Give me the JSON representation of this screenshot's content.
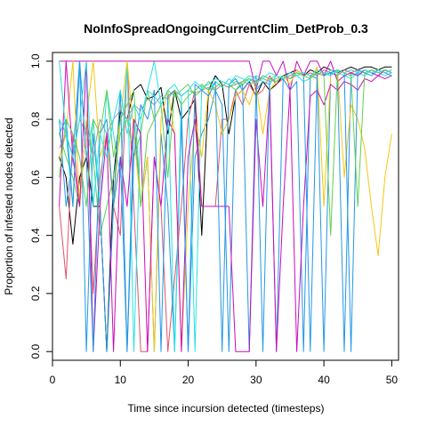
{
  "chart_data": {
    "type": "line",
    "title": "NoInfoSpreadOngoingCurrentClim_DetProb_0.3",
    "xlabel": "Time since incursion detected (timesteps)",
    "ylabel": "Proportion of infested nodes detected",
    "xlim": [
      0,
      51
    ],
    "ylim": [
      -0.03,
      1.03
    ],
    "xticks": [
      0,
      10,
      20,
      30,
      40,
      50
    ],
    "yticks": [
      0.0,
      0.2,
      0.4,
      0.6,
      0.8,
      1.0
    ],
    "xtick_labels": [
      "0",
      "10",
      "20",
      "30",
      "40",
      "50"
    ],
    "ytick_labels": [
      "0.0",
      "0.2",
      "0.4",
      "0.6",
      "0.8",
      "1.0"
    ],
    "grid": false,
    "legend": "none",
    "x": [
      1,
      2,
      3,
      4,
      5,
      6,
      7,
      8,
      9,
      10,
      11,
      12,
      13,
      14,
      15,
      16,
      17,
      18,
      19,
      20,
      21,
      22,
      23,
      24,
      25,
      26,
      27,
      28,
      29,
      30,
      31,
      32,
      33,
      34,
      35,
      36,
      37,
      38,
      39,
      40,
      41,
      42,
      43,
      44,
      45,
      46,
      47,
      48,
      49,
      50
    ],
    "series": [
      {
        "color": "#000000",
        "values": [
          0.67,
          0.6,
          0.37,
          0.6,
          0.67,
          0.5,
          0.5,
          0.0,
          0.6,
          0.83,
          0.8,
          0.9,
          0.92,
          0.87,
          0.88,
          0.91,
          0.75,
          0.9,
          0.8,
          0.83,
          0.87,
          0.4,
          0.9,
          0.95,
          0.92,
          0.75,
          0.88,
          0.9,
          0.93,
          0.88,
          0.93,
          0.9,
          0.92,
          0.95,
          0.96,
          0.97,
          0.95,
          0.97,
          0.96,
          0.98,
          0.97,
          0.96,
          0.97,
          0.98,
          0.97,
          0.98,
          0.98,
          0.97,
          0.98,
          0.98
        ]
      },
      {
        "color": "#DF536B",
        "values": [
          0.5,
          0.25,
          0.75,
          0.5,
          0.8,
          0.2,
          0.6,
          0.75,
          0.5,
          0.4,
          1.0,
          0.5,
          0.0,
          0.0,
          0.67,
          0.5,
          0.0,
          0.25,
          0.5,
          0.8,
          0.9,
          0.5,
          0.5,
          0.5,
          0.8,
          0.8,
          0.9,
          0.85,
          0.92,
          0.88,
          0.9,
          0.95,
          0.92,
          0.94,
          0.95,
          0.96,
          0.95,
          0.96,
          0.95,
          0.97,
          0.96,
          0.95,
          0.97,
          0.96,
          0.97,
          0.96,
          0.97,
          0.96,
          0.97,
          0.96
        ]
      },
      {
        "color": "#61D04F",
        "values": [
          0.75,
          0.67,
          0.6,
          0.5,
          0.8,
          0.67,
          0.4,
          0.5,
          0.6,
          0.75,
          0.8,
          0.67,
          0.75,
          0.9,
          0.8,
          0.85,
          0.9,
          0.88,
          0.9,
          0.92,
          0.88,
          0.9,
          0.93,
          0.9,
          0.92,
          0.91,
          0.93,
          0.92,
          0.94,
          0.93,
          0.95,
          0.94,
          0.95,
          0.94,
          0.96,
          0.95,
          0.96,
          0.95,
          0.97,
          0.96,
          0.95,
          0.97,
          0.96,
          0.95,
          0.96,
          0.97,
          0.96,
          0.97,
          0.96,
          0.97
        ]
      },
      {
        "color": "#2297E6",
        "values": [
          0.8,
          0.5,
          0.67,
          1.0,
          0.0,
          0.75,
          0.5,
          0.0,
          0.5,
          0.67,
          0.0,
          0.8,
          0.5,
          0.67,
          0.0,
          0.75,
          0.5,
          0.0,
          0.8,
          0.0,
          0.67,
          0.75,
          0.8,
          0.9,
          0.85,
          0.0,
          0.9,
          0.92,
          0.0,
          0.9,
          0.93,
          0.92,
          0.0,
          0.94,
          0.9,
          0.93,
          0.0,
          0.95,
          0.94,
          0.0,
          0.96,
          0.95,
          0.0,
          0.96,
          0.95,
          0.97,
          0.96,
          0.95,
          0.97,
          0.96
        ]
      },
      {
        "color": "#28E2E5",
        "values": [
          0.8,
          0.75,
          0.5,
          1.0,
          0.67,
          0.8,
          0.5,
          0.9,
          0.75,
          0.6,
          1.0,
          0.0,
          0.8,
          0.9,
          1.0,
          0.85,
          0.9,
          0.0,
          0.88,
          0.9,
          0.0,
          0.92,
          0.9,
          0.93,
          0.91,
          0.94,
          0.92,
          0.93,
          0.95,
          0.94,
          0.93,
          0.92,
          0.95,
          0.94,
          0.96,
          0.95,
          0.93,
          0.94,
          0.96,
          0.95,
          0.97,
          0.96,
          0.95,
          0.94,
          0.96,
          0.95,
          0.97,
          0.96,
          0.95,
          0.96
        ]
      },
      {
        "color": "#CD0BBC",
        "values": [
          1.0,
          1.0,
          1.0,
          1.0,
          1.0,
          1.0,
          1.0,
          1.0,
          1.0,
          1.0,
          1.0,
          1.0,
          1.0,
          1.0,
          1.0,
          1.0,
          1.0,
          1.0,
          1.0,
          1.0,
          1.0,
          1.0,
          1.0,
          1.0,
          1.0,
          1.0,
          1.0,
          1.0,
          1.0,
          0.9,
          1.0,
          1.0,
          0.95,
          1.0,
          0.9,
          1.0,
          0.95,
          1.0,
          1.0,
          0.95,
          1.0,
          0.93,
          0.95,
          0.96,
          0.95,
          0.97,
          0.96,
          0.95,
          0.97,
          0.96
        ]
      },
      {
        "color": "#F5C710",
        "values": [
          0.67,
          0.75,
          1.0,
          0.5,
          0.8,
          1.0,
          0.67,
          0.75,
          0.5,
          0.8,
          1.0,
          0.75,
          0.5,
          0.67,
          0.0,
          0.8,
          0.9,
          0.75,
          0.0,
          0.5,
          0.8,
          0.67,
          0.9,
          0.85,
          0.75,
          0.8,
          0.88,
          0.9,
          0.85,
          0.92,
          0.75,
          0.9,
          0.93,
          0.95,
          0.92,
          0.97,
          0.95,
          0.94,
          0.98,
          0.5,
          0.95,
          0.97,
          0.6,
          0.85,
          0.8,
          0.7,
          0.5,
          0.33,
          0.6,
          0.75
        ]
      },
      {
        "color": "#9E9E9E",
        "values": [
          0.7,
          0.75,
          0.67,
          0.8,
          0.75,
          0.67,
          0.8,
          0.75,
          0.8,
          0.83,
          0.8,
          0.85,
          0.83,
          0.87,
          0.85,
          0.88,
          0.87,
          0.9,
          0.88,
          0.9,
          0.89,
          0.9,
          0.91,
          0.9,
          0.92,
          0.91,
          0.92,
          0.93,
          0.92,
          0.93,
          0.94,
          0.93,
          0.94,
          0.95,
          0.94,
          0.95,
          0.96,
          0.95,
          0.96,
          0.95,
          0.96,
          0.97,
          0.96,
          0.97,
          0.96,
          0.97,
          0.96,
          0.97,
          0.96,
          0.97
        ]
      },
      {
        "color": "#CD0BBC",
        "values": [
          0.5,
          1.0,
          0.67,
          0.5,
          1.0,
          0.0,
          0.5,
          0.75,
          0.0,
          0.67,
          0.5,
          0.8,
          0.75,
          0.0,
          0.67,
          0.5,
          0.8,
          0.75,
          0.0,
          0.67,
          0.8,
          0.5,
          0.5,
          0.5,
          0.5,
          0.5,
          0.0,
          0.0,
          0.0,
          0.8,
          0.5,
          0.9,
          0.0,
          0.5,
          0.9,
          0.0,
          0.5,
          0.88,
          0.9,
          0.85,
          0.92,
          0.9,
          0.93,
          0.92,
          0.9,
          0.94,
          0.93,
          0.95,
          0.94,
          0.95
        ]
      },
      {
        "color": "#2297E6",
        "values": [
          0.75,
          0.8,
          0.5,
          1.0,
          0.67,
          0.0,
          0.75,
          0.8,
          0.5,
          0.9,
          0.0,
          0.67,
          0.85,
          0.8,
          0.9,
          0.0,
          0.88,
          0.9,
          0.85,
          0.0,
          0.92,
          0.9,
          0.88,
          0.93,
          0.0,
          0.92,
          0.94,
          0.9,
          0.93,
          0.95,
          0.0,
          0.94,
          0.93,
          0.95,
          0.94,
          0.96,
          0.95,
          0.0,
          0.96,
          0.95,
          0.96,
          0.97,
          0.96,
          0.0,
          0.97,
          0.96,
          0.95,
          0.97,
          0.96,
          0.95
        ]
      },
      {
        "color": "#61D04F",
        "values": [
          0.6,
          0.8,
          0.75,
          0.67,
          0.5,
          0.8,
          0.75,
          0.9,
          0.67,
          0.8,
          0.85,
          0.9,
          0.5,
          0.75,
          0.8,
          0.85,
          0.6,
          0.9,
          0.85,
          0.88,
          0.9,
          0.92,
          0.9,
          0.91,
          0.93,
          0.92,
          0.9,
          0.93,
          0.94,
          0.92,
          0.95,
          0.94,
          0.93,
          0.95,
          0.94,
          0.96,
          0.95,
          0.94,
          0.96,
          0.95,
          0.4,
          0.97,
          0.96,
          0.95,
          0.5,
          0.96,
          0.97,
          0.96,
          0.97,
          0.96
        ]
      },
      {
        "color": "#28E2E5",
        "values": [
          1.0,
          0.75,
          0.67,
          0.8,
          1.0,
          0.5,
          0.75,
          0.67,
          0.8,
          0.9,
          0.75,
          0.85,
          0.8,
          0.9,
          0.88,
          0.85,
          0.9,
          0.92,
          0.88,
          0.9,
          0.93,
          0.91,
          0.92,
          0.94,
          0.93,
          0.92,
          0.95,
          0.94,
          0.93,
          0.95,
          0.94,
          0.96,
          0.95,
          0.94,
          0.96,
          0.95,
          0.96,
          0.95,
          0.97,
          0.96,
          0.95,
          0.97,
          0.96,
          0.97,
          0.96,
          0.97,
          0.96,
          0.97,
          0.96,
          0.97
        ]
      }
    ]
  }
}
